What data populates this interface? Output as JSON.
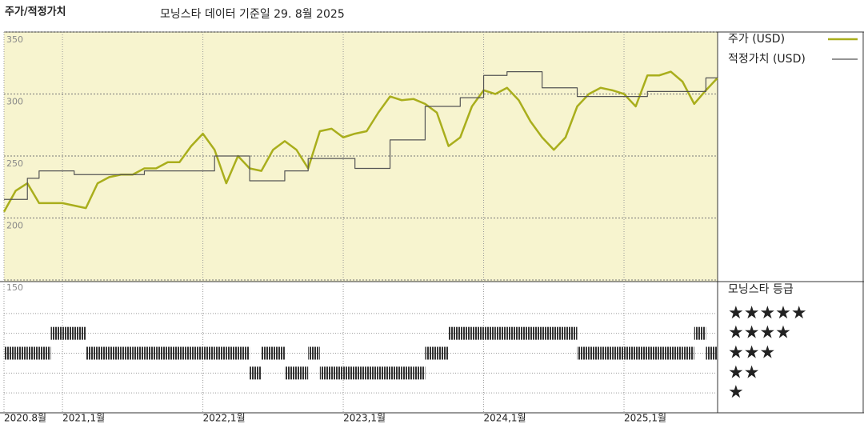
{
  "chart_data": [
    {
      "type": "line",
      "title": "주가/적정가치",
      "subtitle": "모닝스타 데이터 기준일 29. 8월 2025",
      "x": [
        "2020-08",
        "2020-09",
        "2020-10",
        "2020-11",
        "2020-12",
        "2021-01",
        "2021-02",
        "2021-03",
        "2021-04",
        "2021-05",
        "2021-06",
        "2021-07",
        "2021-08",
        "2021-09",
        "2021-10",
        "2021-11",
        "2021-12",
        "2022-01",
        "2022-02",
        "2022-03",
        "2022-04",
        "2022-05",
        "2022-06",
        "2022-07",
        "2022-08",
        "2022-09",
        "2022-10",
        "2022-11",
        "2022-12",
        "2023-01",
        "2023-02",
        "2023-03",
        "2023-04",
        "2023-05",
        "2023-06",
        "2023-07",
        "2023-08",
        "2023-09",
        "2023-10",
        "2023-11",
        "2023-12",
        "2024-01",
        "2024-02",
        "2024-03",
        "2024-04",
        "2024-05",
        "2024-06",
        "2024-07",
        "2024-08",
        "2024-09",
        "2024-10",
        "2024-11",
        "2024-12",
        "2025-01",
        "2025-02",
        "2025-03",
        "2025-04",
        "2025-05",
        "2025-06",
        "2025-07",
        "2025-08",
        "2025-09"
      ],
      "series": [
        {
          "name": "주가 (USD)",
          "color": "#a9ae1c",
          "values": [
            205,
            222,
            228,
            212,
            212,
            212,
            210,
            208,
            228,
            233,
            235,
            235,
            240,
            240,
            245,
            245,
            258,
            268,
            255,
            228,
            250,
            240,
            238,
            255,
            262,
            255,
            240,
            270,
            272,
            265,
            268,
            270,
            285,
            298,
            295,
            296,
            292,
            285,
            258,
            265,
            290,
            303,
            300,
            305,
            295,
            278,
            265,
            255,
            265,
            290,
            300,
            305,
            303,
            300,
            290,
            315,
            315,
            318,
            310,
            292,
            303,
            313
          ]
        },
        {
          "name": "적정가치 (USD)",
          "color": "#555555",
          "step": true,
          "values": [
            215,
            215,
            232,
            238,
            238,
            238,
            235,
            235,
            235,
            235,
            235,
            235,
            238,
            238,
            238,
            238,
            238,
            238,
            250,
            250,
            250,
            230,
            230,
            230,
            238,
            238,
            248,
            248,
            248,
            248,
            240,
            240,
            240,
            263,
            263,
            263,
            290,
            290,
            290,
            297,
            297,
            315,
            315,
            318,
            318,
            318,
            305,
            305,
            305,
            298,
            298,
            298,
            298,
            298,
            298,
            302,
            302,
            302,
            302,
            302,
            313,
            313
          ]
        }
      ],
      "xlim": [
        "2020-08",
        "2025-09"
      ],
      "xticks": [
        {
          "value": "2020-08",
          "label": "2020.8월"
        },
        {
          "value": "2021-01",
          "label": "2021,1월"
        },
        {
          "value": "2022-01",
          "label": "2022,1월"
        },
        {
          "value": "2023-01",
          "label": "2023,1월"
        },
        {
          "value": "2024-01",
          "label": "2024,1월"
        },
        {
          "value": "2025-01",
          "label": "2025,1월"
        }
      ],
      "ylim": [
        150,
        350
      ],
      "yticks": [
        150,
        200,
        250,
        300,
        350
      ],
      "grid": true,
      "background": "#f7f4cf"
    },
    {
      "type": "rating",
      "title": "모닝스타 등급",
      "color": "#333333",
      "x": [
        "2020-08",
        "2020-09",
        "2020-10",
        "2020-11",
        "2020-12",
        "2021-01",
        "2021-02",
        "2021-03",
        "2021-04",
        "2021-05",
        "2021-06",
        "2021-07",
        "2021-08",
        "2021-09",
        "2021-10",
        "2021-11",
        "2021-12",
        "2022-01",
        "2022-02",
        "2022-03",
        "2022-04",
        "2022-05",
        "2022-06",
        "2022-07",
        "2022-08",
        "2022-09",
        "2022-10",
        "2022-11",
        "2022-12",
        "2023-01",
        "2023-02",
        "2023-03",
        "2023-04",
        "2023-05",
        "2023-06",
        "2023-07",
        "2023-08",
        "2023-09",
        "2023-10",
        "2023-11",
        "2023-12",
        "2024-01",
        "2024-02",
        "2024-03",
        "2024-04",
        "2024-05",
        "2024-06",
        "2024-07",
        "2024-08",
        "2024-09",
        "2024-10",
        "2024-11",
        "2024-12",
        "2025-01",
        "2025-02",
        "2025-03",
        "2025-04",
        "2025-05",
        "2025-06",
        "2025-07",
        "2025-08"
      ],
      "values": [
        3,
        3,
        3,
        3,
        4,
        4,
        4,
        3,
        3,
        3,
        3,
        3,
        3,
        3,
        3,
        3,
        3,
        3,
        3,
        3,
        3,
        2,
        3,
        3,
        2,
        2,
        3,
        2,
        2,
        2,
        2,
        2,
        2,
        2,
        2,
        2,
        3,
        3,
        4,
        4,
        4,
        4,
        4,
        4,
        4,
        4,
        4,
        4,
        4,
        3,
        3,
        3,
        3,
        3,
        3,
        3,
        3,
        3,
        3,
        4,
        3
      ],
      "ylim": [
        0,
        6
      ],
      "yticks": [
        {
          "value": 5,
          "label": "★★★★★"
        },
        {
          "value": 4,
          "label": "★★★★"
        },
        {
          "value": 3,
          "label": "★★★"
        },
        {
          "value": 2,
          "label": "★★"
        },
        {
          "value": 1,
          "label": "★"
        }
      ]
    }
  ]
}
